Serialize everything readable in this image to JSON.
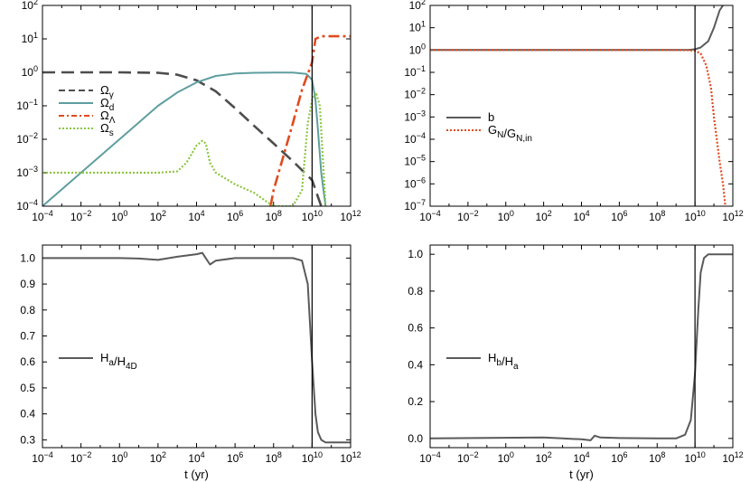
{
  "chart_data": [
    {
      "type": "line",
      "panel": "top-left",
      "xscale": "log",
      "yscale": "log",
      "xlim": [
        0.0001,
        1000000000000.0
      ],
      "ylim": [
        0.0001,
        100.0
      ],
      "xlabel": "",
      "ylabel": "",
      "x_ticks": [
        "10^-4",
        "10^-2",
        "10^0",
        "10^2",
        "10^4",
        "10^6",
        "10^8",
        "10^10",
        "10^12"
      ],
      "y_ticks": [
        "10^-4",
        "10^-3",
        "10^-2",
        "10^-1",
        "10^0",
        "10^1",
        "10^2"
      ],
      "vline_x": 10000000000.0,
      "legend": "left-middle",
      "series": [
        {
          "name": "Ω_γ",
          "style": "dashed",
          "color": "#4d4d4d",
          "x": [
            0.0001,
            1.0,
            100.0,
            1000.0,
            10000.0,
            100000.0,
            1000000.0,
            10000000.0,
            100000000.0,
            1000000000.0,
            10000000000.0,
            30000000000.0
          ],
          "y": [
            1,
            1,
            0.97,
            0.85,
            0.58,
            0.27,
            0.085,
            0.025,
            0.0075,
            0.0022,
            0.0006,
            0.0001
          ]
        },
        {
          "name": "Ω_d",
          "style": "solid",
          "color": "#5f9ea0",
          "x": [
            0.0001,
            0.01,
            1.0,
            100.0,
            1000.0,
            10000.0,
            100000.0,
            1000000.0,
            10000000.0,
            100000000.0,
            1000000000.0,
            5000000000.0,
            10000000000.0,
            15000000000.0,
            20000000000.0,
            30000000000.0,
            50000000000.0
          ],
          "y": [
            0.0001,
            0.001,
            0.01,
            0.1,
            0.25,
            0.5,
            0.78,
            0.92,
            0.97,
            0.99,
            0.99,
            0.9,
            0.6,
            0.15,
            0.02,
            0.001,
            0.0001
          ]
        },
        {
          "name": "Ω_Λ",
          "style": "dashdot",
          "color": "#e04a1f",
          "x": [
            70000000.0,
            100000000.0,
            1000000000.0,
            3000000000.0,
            10000000000.0,
            15000000000.0,
            30000000000.0,
            100000000000.0,
            1000000000000.0
          ],
          "y": [
            0.0001,
            0.0003,
            0.03,
            0.3,
            2,
            10,
            12,
            12,
            12
          ]
        },
        {
          "name": "Ω_s",
          "style": "dotted",
          "color": "#8cc63f",
          "x": [
            0.0001,
            100.0,
            1000.0,
            3000.0,
            10000.0,
            20000.0,
            30000.0,
            50000.0,
            100000.0,
            1000000.0,
            10000000.0,
            50000000.0,
            100000000.0,
            500000000.0,
            1000000000.0,
            3000000000.0,
            6000000000.0,
            10000000000.0,
            16000000000.0,
            25000000000.0,
            40000000000.0,
            50000000000.0
          ],
          "y": [
            0.001,
            0.001,
            0.0011,
            0.002,
            0.0065,
            0.009,
            0.0075,
            0.002,
            0.001,
            0.00045,
            0.00025,
            0.00013,
            0.0001,
            0.0001,
            0.0001,
            0.0003,
            0.03,
            0.15,
            0.25,
            0.1,
            0.001,
            0.0001
          ]
        }
      ]
    },
    {
      "type": "line",
      "panel": "top-right",
      "xscale": "log",
      "yscale": "log",
      "xlim": [
        0.0001,
        1000000000000.0
      ],
      "ylim": [
        1e-07,
        100.0
      ],
      "xlabel": "",
      "ylabel": "",
      "x_ticks": [
        "10^-4",
        "10^-2",
        "10^0",
        "10^2",
        "10^4",
        "10^6",
        "10^8",
        "10^10",
        "10^12"
      ],
      "y_ticks": [
        "10^-7",
        "10^-6",
        "10^-5",
        "10^-4",
        "10^-3",
        "10^-2",
        "10^-1",
        "10^0",
        "10^1",
        "10^2"
      ],
      "vline_x": 10000000000.0,
      "legend": "left-middle",
      "series": [
        {
          "name": "b",
          "style": "solid",
          "color": "#5a5a5a",
          "x": [
            0.0001,
            100000000.0,
            1000000000.0,
            5000000000.0,
            10000000000.0,
            20000000000.0,
            50000000000.0,
            100000000000.0,
            200000000000.0,
            300000000000.0
          ],
          "y": [
            1,
            1,
            1,
            1.02,
            1.08,
            1.3,
            2.5,
            10,
            60,
            100
          ]
        },
        {
          "name": "G_N/G_N,in",
          "style": "dotted",
          "color": "#e04a1f",
          "x": [
            0.0001,
            100000000.0,
            1000000000.0,
            5000000000.0,
            10000000000.0,
            20000000000.0,
            40000000000.0,
            70000000000.0,
            100000000000.0,
            200000000000.0,
            300000000000.0,
            400000000000.0
          ],
          "y": [
            1,
            1,
            1,
            0.98,
            0.92,
            0.7,
            0.2,
            0.02,
            0.001,
            1e-05,
            1e-06,
            1e-07
          ]
        }
      ]
    },
    {
      "type": "line",
      "panel": "bottom-left",
      "xscale": "log",
      "yscale": "linear",
      "xlim": [
        0.0001,
        1000000000000.0
      ],
      "ylim": [
        0.27,
        1.05
      ],
      "xlabel": "t (yr)",
      "ylabel": "",
      "x_ticks": [
        "10^-4",
        "10^-2",
        "10^0",
        "10^2",
        "10^4",
        "10^6",
        "10^8",
        "10^10",
        "10^12"
      ],
      "y_ticks": [
        0.3,
        0.4,
        0.5,
        0.6,
        0.7,
        0.8,
        0.9,
        1.0
      ],
      "vline_x": 10000000000.0,
      "legend": "left-middle",
      "series": [
        {
          "name": "H_a/H_4D",
          "style": "solid",
          "color": "#5a5a5a",
          "x": [
            0.0001,
            1.0,
            10.0,
            100.0,
            1000.0,
            10000.0,
            20000.0,
            30000.0,
            50000.0,
            100000.0,
            1000000.0,
            10000000.0,
            100000000.0,
            1000000000.0,
            3000000000.0,
            6000000000.0,
            10000000000.0,
            15000000000.0,
            20000000000.0,
            30000000000.0,
            50000000000.0,
            100000000000.0,
            1000000000000.0
          ],
          "y": [
            1.0,
            1.0,
            0.998,
            0.993,
            1.005,
            1.015,
            1.02,
            1.0,
            0.975,
            0.99,
            1.0,
            1.0,
            1.0,
            1.0,
            0.99,
            0.9,
            0.6,
            0.4,
            0.33,
            0.3,
            0.29,
            0.29,
            0.29
          ]
        }
      ]
    },
    {
      "type": "line",
      "panel": "bottom-right",
      "xscale": "log",
      "yscale": "linear",
      "xlim": [
        0.0001,
        1000000000000.0
      ],
      "ylim": [
        -0.05,
        1.05
      ],
      "xlabel": "t (yr)",
      "ylabel": "",
      "x_ticks": [
        "10^-4",
        "10^-2",
        "10^0",
        "10^2",
        "10^4",
        "10^6",
        "10^8",
        "10^10",
        "10^12"
      ],
      "y_ticks": [
        0.0,
        0.2,
        0.4,
        0.6,
        0.8,
        1.0
      ],
      "vline_x": 10000000000.0,
      "legend": "left-middle",
      "series": [
        {
          "name": "H_b/H_a",
          "style": "solid",
          "color": "#5a5a5a",
          "x": [
            0.0001,
            100.0,
            1000.0,
            10000.0,
            30000.0,
            50000.0,
            100000.0,
            1000000.0,
            100000000.0,
            1000000000.0,
            3000000000.0,
            6000000000.0,
            10000000000.0,
            15000000000.0,
            20000000000.0,
            30000000000.0,
            50000000000.0,
            100000000000.0,
            1000000000000.0
          ],
          "y": [
            0.0,
            0.005,
            0.0,
            -0.005,
            -0.01,
            0.015,
            0.005,
            0.002,
            0.0,
            0.0,
            0.02,
            0.1,
            0.35,
            0.7,
            0.9,
            0.98,
            1.0,
            1.0,
            1.0
          ]
        }
      ]
    }
  ]
}
